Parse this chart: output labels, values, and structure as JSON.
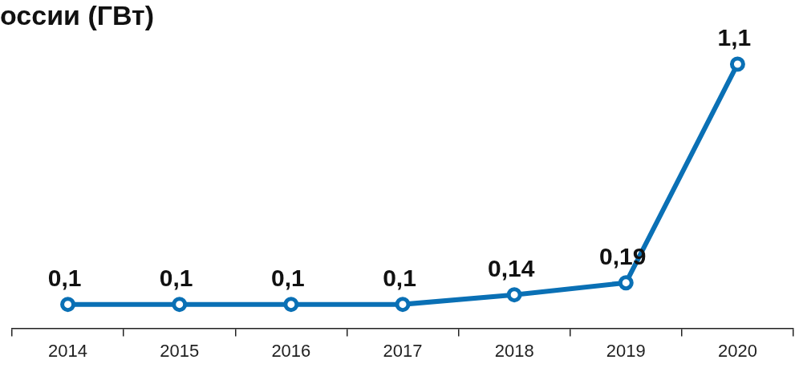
{
  "chart_data": {
    "type": "line",
    "title": "оссии (ГВт)",
    "categories": [
      "2014",
      "2015",
      "2016",
      "2017",
      "2018",
      "2019",
      "2020"
    ],
    "series": [
      {
        "color": "#0a70b5",
        "values": [
          0.1,
          0.1,
          0.1,
          0.1,
          0.14,
          0.19,
          1.1
        ],
        "value_labels": [
          "0,1",
          "0,1",
          "0,1",
          "0,1",
          "0,14",
          "0,19",
          "1,1"
        ]
      }
    ],
    "marker": "circle",
    "line_style": "solid",
    "grid": false,
    "legend": false
  }
}
